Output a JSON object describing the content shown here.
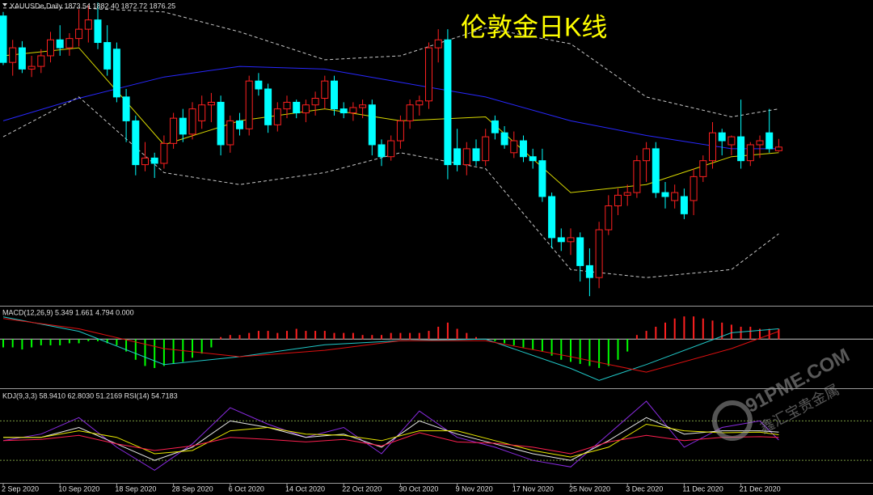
{
  "chart_data": [
    {
      "type": "candlestick",
      "title": "伦敦金日K线",
      "header": "XAUUSDe,Daily 1873.54 1882.40 1872.72 1876.25",
      "up_color": "#ff2020",
      "down_color": "#00ffff",
      "ylim": [
        1758,
        1987
      ],
      "categories": [
        "2 Sep 2020",
        null,
        null,
        null,
        null,
        null,
        "10 Sep 2020",
        null,
        null,
        null,
        null,
        null,
        "18 Sep 2020",
        null,
        null,
        null,
        null,
        null,
        "28 Sep 2020",
        null,
        null,
        null,
        null,
        null,
        "6 Oct 2020",
        null,
        null,
        null,
        null,
        null,
        "14 Oct 2020",
        null,
        null,
        null,
        null,
        null,
        "22 Oct 2020",
        null,
        null,
        null,
        null,
        null,
        "30 Oct 2020",
        null,
        null,
        null,
        null,
        null,
        "9 Nov 2020",
        null,
        null,
        null,
        null,
        null,
        "17 Nov 2020",
        null,
        null,
        null,
        null,
        null,
        "25 Nov 2020",
        null,
        null,
        null,
        null,
        null,
        "3 Dec 2020",
        null,
        null,
        null,
        null,
        null,
        "11 Dec 2020",
        null,
        null,
        null,
        null,
        null,
        "21 Dec 2020",
        null,
        null,
        null,
        null
      ],
      "candles": [
        [
          1975,
          1978,
          1938,
          1940
        ],
        [
          1940,
          1957,
          1930,
          1951
        ],
        [
          1951,
          1956,
          1932,
          1935
        ],
        [
          1935,
          1945,
          1929,
          1937
        ],
        [
          1937,
          1950,
          1932,
          1945
        ],
        [
          1945,
          1963,
          1940,
          1957
        ],
        [
          1957,
          1968,
          1945,
          1951
        ],
        [
          1951,
          1962,
          1945,
          1958
        ],
        [
          1958,
          1980,
          1952,
          1965
        ],
        [
          1965,
          1983,
          1955,
          1972
        ],
        [
          1972,
          1985,
          1950,
          1955
        ],
        [
          1955,
          1968,
          1930,
          1935
        ],
        [
          1950,
          1955,
          1910,
          1914
        ],
        [
          1914,
          1920,
          1880,
          1896
        ],
        [
          1896,
          1900,
          1855,
          1863
        ],
        [
          1863,
          1880,
          1858,
          1868
        ],
        [
          1868,
          1872,
          1853,
          1864
        ],
        [
          1864,
          1885,
          1860,
          1879
        ],
        [
          1879,
          1902,
          1875,
          1898
        ],
        [
          1898,
          1905,
          1880,
          1886
        ],
        [
          1886,
          1910,
          1882,
          1905
        ],
        [
          1896,
          1915,
          1890,
          1908
        ],
        [
          1908,
          1917,
          1895,
          1910
        ],
        [
          1910,
          1915,
          1870,
          1878
        ],
        [
          1878,
          1900,
          1872,
          1896
        ],
        [
          1896,
          1902,
          1885,
          1890
        ],
        [
          1890,
          1930,
          1885,
          1926
        ],
        [
          1926,
          1932,
          1915,
          1920
        ],
        [
          1920,
          1924,
          1887,
          1893
        ],
        [
          1893,
          1910,
          1888,
          1905
        ],
        [
          1905,
          1915,
          1898,
          1910
        ],
        [
          1910,
          1912,
          1898,
          1902
        ],
        [
          1902,
          1912,
          1895,
          1908
        ],
        [
          1908,
          1918,
          1900,
          1913
        ],
        [
          1913,
          1930,
          1905,
          1926
        ],
        [
          1926,
          1930,
          1900,
          1905
        ],
        [
          1905,
          1910,
          1898,
          1902
        ],
        [
          1902,
          1910,
          1896,
          1906
        ],
        [
          1906,
          1912,
          1898,
          1908
        ],
        [
          1908,
          1912,
          1870,
          1878
        ],
        [
          1878,
          1882,
          1862,
          1869
        ],
        [
          1869,
          1885,
          1866,
          1881
        ],
        [
          1881,
          1900,
          1875,
          1896
        ],
        [
          1896,
          1912,
          1890,
          1908
        ],
        [
          1908,
          1915,
          1900,
          1911
        ],
        [
          1911,
          1955,
          1905,
          1951
        ],
        [
          1951,
          1965,
          1940,
          1957
        ],
        [
          1957,
          1965,
          1852,
          1863
        ],
        [
          1875,
          1890,
          1858,
          1863
        ],
        [
          1863,
          1880,
          1855,
          1875
        ],
        [
          1875,
          1882,
          1862,
          1866
        ],
        [
          1866,
          1890,
          1862,
          1884
        ],
        [
          1896,
          1900,
          1882,
          1887
        ],
        [
          1887,
          1892,
          1875,
          1878
        ],
        [
          1872,
          1888,
          1868,
          1881
        ],
        [
          1881,
          1885,
          1865,
          1869
        ],
        [
          1869,
          1875,
          1860,
          1866
        ],
        [
          1866,
          1875,
          1835,
          1839
        ],
        [
          1839,
          1842,
          1800,
          1808
        ],
        [
          1808,
          1815,
          1798,
          1805
        ],
        [
          1805,
          1815,
          1795,
          1808
        ],
        [
          1808,
          1812,
          1775,
          1787
        ],
        [
          1787,
          1800,
          1764,
          1778
        ],
        [
          1778,
          1820,
          1770,
          1814
        ],
        [
          1814,
          1840,
          1810,
          1832
        ],
        [
          1832,
          1845,
          1825,
          1840
        ],
        [
          1840,
          1848,
          1832,
          1842
        ],
        [
          1842,
          1870,
          1838,
          1866
        ],
        [
          1866,
          1880,
          1850,
          1875
        ],
        [
          1875,
          1880,
          1838,
          1842
        ],
        [
          1842,
          1850,
          1830,
          1839
        ],
        [
          1836,
          1848,
          1830,
          1842
        ],
        [
          1839,
          1845,
          1822,
          1826
        ],
        [
          1836,
          1860,
          1825,
          1854
        ],
        [
          1854,
          1870,
          1850,
          1866
        ],
        [
          1866,
          1895,
          1860,
          1887
        ],
        [
          1887,
          1890,
          1870,
          1881
        ],
        [
          1878,
          1885,
          1870,
          1884
        ],
        [
          1884,
          1912,
          1860,
          1866
        ],
        [
          1866,
          1880,
          1862,
          1878
        ],
        [
          1878,
          1885,
          1868,
          1881
        ],
        [
          1887,
          1905,
          1872,
          1875
        ],
        [
          1873.54,
          1882.4,
          1872.72,
          1876.25
        ]
      ],
      "lines": [
        {
          "color": "#2828ff",
          "dash": false,
          "x": [
            0,
            8,
            17,
            25,
            34,
            42,
            51,
            60,
            68,
            77,
            82
          ],
          "values": [
            1896,
            1913,
            1929,
            1937,
            1935,
            1925,
            1914,
            1896,
            1885,
            1875,
            1875
          ]
        },
        {
          "color": "#d8d800",
          "dash": false,
          "x": [
            0,
            8,
            17,
            25,
            34,
            42,
            51,
            60,
            68,
            77,
            82
          ],
          "values": [
            1945,
            1951,
            1878,
            1896,
            1905,
            1896,
            1899,
            1842,
            1848,
            1869,
            1872
          ]
        },
        {
          "color": "#c8c8c8",
          "dash": true,
          "x": [
            0,
            8,
            17,
            25,
            34,
            42,
            51,
            60,
            68,
            77,
            82
          ],
          "values": [
            1981,
            1981,
            1978,
            1963,
            1942,
            1945,
            1966,
            1954,
            1914,
            1899,
            1905
          ]
        },
        {
          "color": "#c8c8c8",
          "dash": true,
          "x": [
            0,
            8,
            17,
            25,
            34,
            42,
            51,
            60,
            68,
            77,
            82
          ],
          "values": [
            1884,
            1914,
            1857,
            1848,
            1857,
            1872,
            1860,
            1784,
            1778,
            1784,
            1811
          ]
        }
      ]
    },
    {
      "type": "macd",
      "header": "MACD(12,26,9) 5.349 1.661 4.794 0.000",
      "up_color": "#ff2020",
      "down_color": "#00ff00",
      "ylim": [
        -23,
        15
      ],
      "values": [
        -4,
        -4,
        -5,
        -4,
        -3,
        -3,
        -3,
        -2,
        -2,
        -1,
        -1,
        -2,
        -3,
        -6,
        -10,
        -13,
        -14,
        -13,
        -12,
        -11,
        -9,
        -7,
        -4,
        1,
        2,
        2,
        3,
        4,
        4,
        3,
        4,
        5,
        4,
        4,
        4,
        3,
        3,
        3,
        2,
        2,
        2,
        3,
        3,
        3,
        3,
        4,
        6,
        8,
        5,
        3,
        1,
        0,
        -1,
        -2,
        -3,
        -4,
        -5,
        -6,
        -8,
        -10,
        -11,
        -12,
        -13,
        -14,
        -13,
        -10,
        -6,
        2,
        4,
        6,
        8,
        10,
        11,
        11,
        10,
        9,
        8,
        7,
        6,
        6,
        5,
        5,
        5
      ],
      "lines": [
        {
          "color": "#20c8c8",
          "dash": false,
          "x": [
            0,
            8,
            17,
            25,
            34,
            42,
            51,
            60,
            63,
            68,
            77,
            82
          ],
          "values": [
            10.8,
            3.8,
            -12.3,
            -8.5,
            -2.7,
            -0.8,
            0,
            -14.2,
            -20,
            -12.3,
            3.1,
            5.0
          ]
        },
        {
          "color": "#e01010",
          "dash": false,
          "x": [
            0,
            8,
            17,
            25,
            34,
            42,
            51,
            60,
            68,
            77,
            82
          ],
          "values": [
            10,
            5,
            -4.6,
            -8.5,
            -5.4,
            -0.8,
            -0.8,
            -8.5,
            -16,
            -4.6,
            3.8
          ]
        }
      ]
    },
    {
      "type": "line",
      "header": "KDJ(9,3,3) 58.9410 62.8030 51.2169 RSI(14) 54.7183",
      "ylim": [
        -13,
        126
      ],
      "levels": [
        80,
        20
      ],
      "lines": [
        {
          "color": "#8a2be2",
          "dash": false,
          "x": [
            0,
            4,
            8,
            12,
            16,
            20,
            24,
            28,
            32,
            36,
            40,
            44,
            48,
            52,
            56,
            60,
            64,
            68,
            72,
            76,
            80,
            82
          ],
          "values": [
            50,
            60,
            85,
            40,
            5,
            45,
            100,
            75,
            55,
            70,
            30,
            95,
            55,
            40,
            20,
            10,
            60,
            110,
            40,
            70,
            80,
            51
          ]
        },
        {
          "color": "#e8e8e8",
          "dash": false,
          "x": [
            0,
            4,
            8,
            12,
            16,
            20,
            24,
            28,
            32,
            36,
            40,
            44,
            48,
            52,
            56,
            60,
            64,
            68,
            72,
            76,
            80,
            82
          ],
          "values": [
            55,
            55,
            70,
            45,
            20,
            40,
            80,
            70,
            55,
            60,
            40,
            80,
            60,
            45,
            30,
            20,
            50,
            85,
            60,
            65,
            65,
            63
          ]
        },
        {
          "color": "#e8e800",
          "dash": false,
          "x": [
            0,
            4,
            8,
            12,
            16,
            20,
            24,
            28,
            32,
            36,
            40,
            44,
            48,
            52,
            56,
            60,
            64,
            68,
            72,
            76,
            80,
            82
          ],
          "values": [
            55,
            55,
            65,
            55,
            30,
            35,
            65,
            70,
            60,
            58,
            50,
            65,
            65,
            50,
            35,
            25,
            40,
            75,
            65,
            62,
            63,
            59
          ]
        },
        {
          "color": "#ff2050",
          "dash": false,
          "x": [
            0,
            4,
            8,
            12,
            16,
            20,
            24,
            28,
            32,
            36,
            40,
            44,
            48,
            52,
            56,
            60,
            64,
            68,
            72,
            76,
            80,
            82
          ],
          "values": [
            50,
            52,
            58,
            45,
            35,
            42,
            55,
            52,
            48,
            52,
            42,
            62,
            48,
            46,
            40,
            30,
            48,
            58,
            50,
            55,
            56,
            55
          ]
        }
      ]
    }
  ],
  "watermark": {
    "site": "91PME.COM",
    "brand": "鑫汇宝贵金属"
  }
}
